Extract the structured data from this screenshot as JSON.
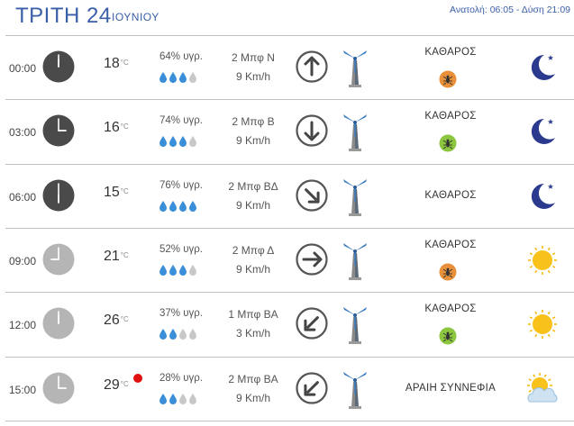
{
  "header": {
    "day": "ΤΡΙΤΗ 24",
    "month": "ΙΟΥΝΙΟΥ",
    "sun": "Ανατολή: 06:05 - Δύση 21:09"
  },
  "unit_temp": "°C",
  "colors": {
    "accent": "#3a5fa8",
    "night_clock": "#4a4a4a",
    "day_clock": "#b5b5b5",
    "drop_full": "#3a8fd8",
    "drop_empty": "#c8c8c8",
    "bug_orange": "#e8913a",
    "bug_green": "#8cc63f"
  },
  "rows": [
    {
      "time": "00:00",
      "clock": "night",
      "temp": "18",
      "hot": false,
      "humidity": "64% υγρ.",
      "drops_filled": 3,
      "wind_force": "2 Μπφ Ν",
      "wind_speed": "9 Km/h",
      "arrow_icon": "arrow-up-icon",
      "condition": "ΚΑΘΑΡΟΣ",
      "bug": "orange",
      "weather_icon": "moon-icon"
    },
    {
      "time": "03:00",
      "clock": "night",
      "temp": "16",
      "hot": false,
      "humidity": "74% υγρ.",
      "drops_filled": 3,
      "wind_force": "2 Μπφ Β",
      "wind_speed": "9 Km/h",
      "arrow_icon": "arrow-down-icon",
      "condition": "ΚΑΘΑΡΟΣ",
      "bug": "green",
      "weather_icon": "moon-icon"
    },
    {
      "time": "06:00",
      "clock": "night",
      "temp": "15",
      "hot": false,
      "humidity": "76% υγρ.",
      "drops_filled": 4,
      "wind_force": "2 Μπφ ΒΔ",
      "wind_speed": "9 Km/h",
      "arrow_icon": "arrow-down-right-icon",
      "condition": "ΚΑΘΑΡΟΣ",
      "bug": null,
      "weather_icon": "moon-icon"
    },
    {
      "time": "09:00",
      "clock": "day",
      "temp": "21",
      "hot": false,
      "humidity": "52% υγρ.",
      "drops_filled": 3,
      "wind_force": "2 Μπφ Δ",
      "wind_speed": "9 Km/h",
      "arrow_icon": "arrow-right-icon",
      "condition": "ΚΑΘΑΡΟΣ",
      "bug": "orange",
      "weather_icon": "sun-icon"
    },
    {
      "time": "12:00",
      "clock": "day",
      "temp": "26",
      "hot": false,
      "humidity": "37% υγρ.",
      "drops_filled": 2,
      "wind_force": "1 Μπφ ΒΑ",
      "wind_speed": "3 Km/h",
      "arrow_icon": "arrow-down-left-icon",
      "condition": "ΚΑΘΑΡΟΣ",
      "bug": "green",
      "weather_icon": "sun-icon"
    },
    {
      "time": "15:00",
      "clock": "day",
      "temp": "29",
      "hot": true,
      "humidity": "28% υγρ.",
      "drops_filled": 2,
      "wind_force": "2 Μπφ ΒΑ",
      "wind_speed": "9 Km/h",
      "arrow_icon": "arrow-down-left-icon",
      "condition": "ΑΡΑΙΗ ΣΥΝΝΕΦΙΑ",
      "bug": null,
      "weather_icon": "sun-cloud-icon"
    }
  ]
}
